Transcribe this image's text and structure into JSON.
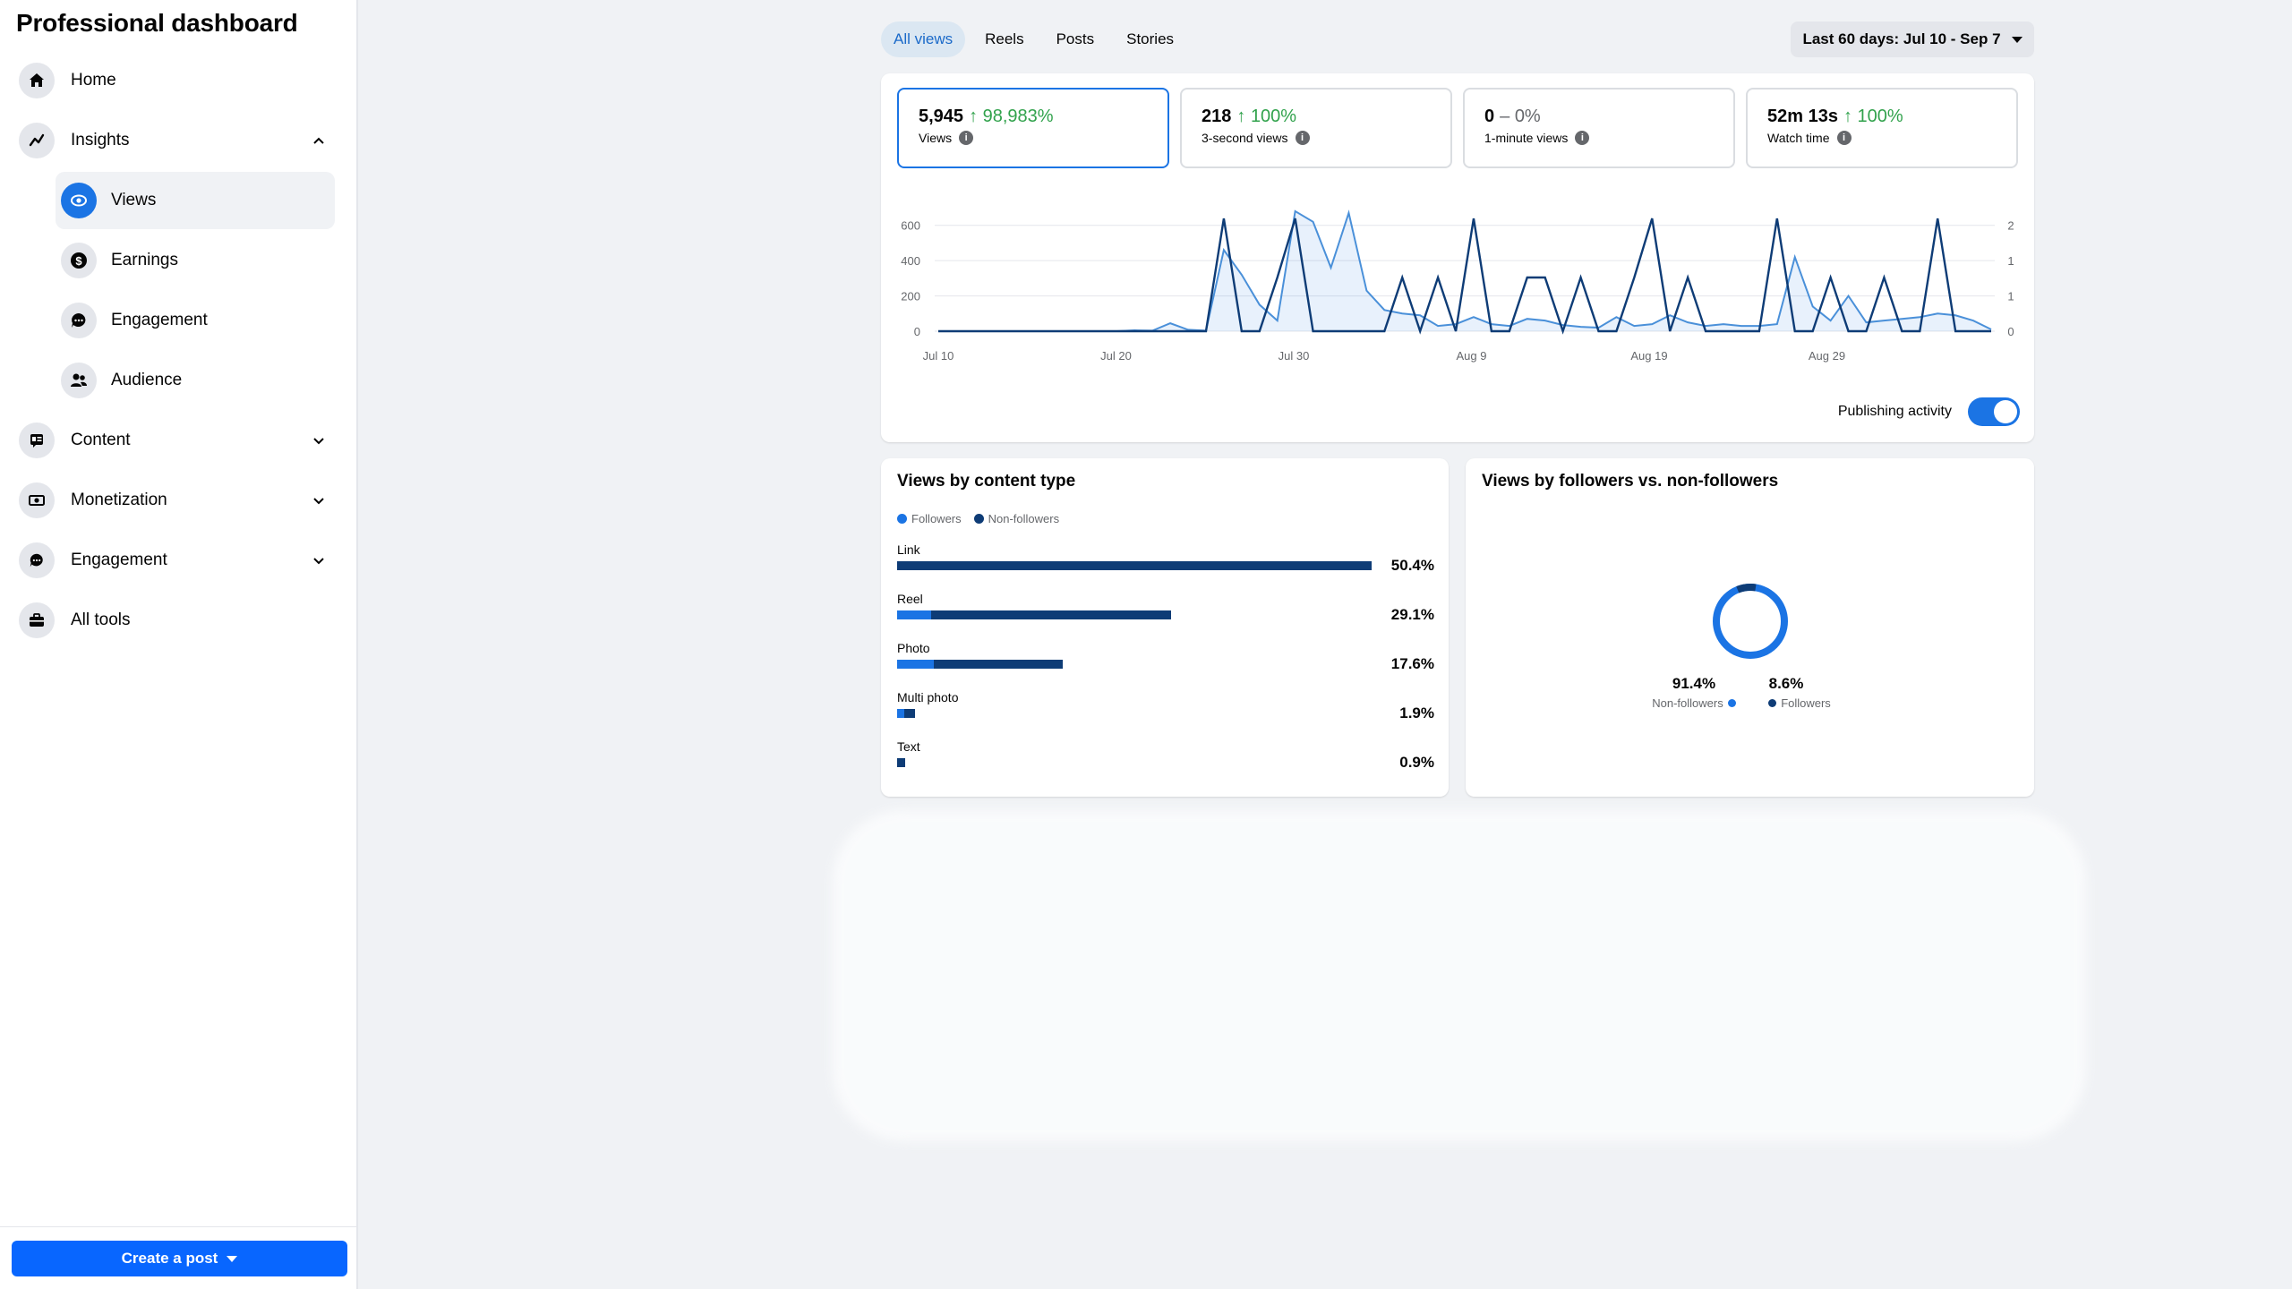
{
  "sidebar": {
    "title": "Professional dashboard",
    "items": [
      {
        "label": "Home",
        "icon": "home-icon"
      },
      {
        "label": "Insights",
        "icon": "insights-icon"
      },
      {
        "label": "Views",
        "icon": "eye-icon"
      },
      {
        "label": "Earnings",
        "icon": "dollar-icon"
      },
      {
        "label": "Engagement",
        "icon": "chat-icon"
      },
      {
        "label": "Audience",
        "icon": "people-icon"
      },
      {
        "label": "Content",
        "icon": "content-icon"
      },
      {
        "label": "Monetization",
        "icon": "money-icon"
      },
      {
        "label": "Engagement",
        "icon": "chat-icon"
      },
      {
        "label": "All tools",
        "icon": "toolbox-icon"
      }
    ],
    "create_post": "Create a post"
  },
  "tabs": [
    "All views",
    "Reels",
    "Posts",
    "Stories"
  ],
  "date_range": "Last 60 days: Jul 10 - Sep 7",
  "metrics": [
    {
      "value": "5,945",
      "arrow": "↑",
      "change": "98,983%",
      "label": "Views"
    },
    {
      "value": "218",
      "arrow": "↑",
      "change": "100%",
      "label": "3-second views"
    },
    {
      "value": "0",
      "arrow": "–",
      "change": "0%",
      "label": "1-minute views"
    },
    {
      "value": "52m 13s",
      "arrow": "↑",
      "change": "100%",
      "label": "Watch time"
    }
  ],
  "publishing_activity": "Publishing activity",
  "colors": {
    "followers": "#1b74e4",
    "non_followers": "#0e3c76",
    "accent": "#1b74e4"
  },
  "content_type": {
    "title": "Views by content type",
    "legend": [
      "Followers",
      "Non-followers"
    ],
    "rows": [
      {
        "label": "Link",
        "pct": "50.4%",
        "total": 50.4,
        "followers": 0
      },
      {
        "label": "Reel",
        "pct": "29.1%",
        "total": 29.1,
        "followers": 3.6
      },
      {
        "label": "Photo",
        "pct": "17.6%",
        "total": 17.6,
        "followers": 3.9
      },
      {
        "label": "Multi photo",
        "pct": "1.9%",
        "total": 1.9,
        "followers": 0.8
      },
      {
        "label": "Text",
        "pct": "0.9%",
        "total": 0.9,
        "followers": 0
      }
    ]
  },
  "followers_split": {
    "title": "Views by followers vs. non-followers",
    "non_followers_pct": "91.4%",
    "non_followers_label": "Non-followers",
    "followers_pct": "8.6%",
    "followers_label": "Followers"
  },
  "chart_data": {
    "type": "line",
    "x_ticks": [
      "Jul 10",
      "Jul 20",
      "Jul 30",
      "Aug 9",
      "Aug 19",
      "Aug 29"
    ],
    "y_ticks_left": [
      "0",
      "200",
      "400",
      "600"
    ],
    "y_ticks_right": [
      "0",
      "1",
      "1",
      "2"
    ],
    "ylim_left": [
      0,
      700
    ],
    "ylim_right": [
      0,
      2.3
    ],
    "x": [
      1,
      2,
      3,
      4,
      5,
      6,
      7,
      8,
      9,
      10,
      11,
      12,
      13,
      14,
      15,
      16,
      17,
      18,
      19,
      20,
      21,
      22,
      23,
      24,
      25,
      26,
      27,
      28,
      29,
      30,
      31,
      32,
      33,
      34,
      35,
      36,
      37,
      38,
      39,
      40,
      41,
      42,
      43,
      44,
      45,
      46,
      47,
      48,
      49,
      50,
      51,
      52,
      53,
      54,
      55,
      56,
      57,
      58,
      59,
      60
    ],
    "series": [
      {
        "values": [
          0,
          0,
          0,
          0,
          0,
          0,
          0,
          0,
          0,
          0,
          0,
          5,
          3,
          45,
          8,
          3,
          460,
          320,
          150,
          60,
          680,
          620,
          360,
          670,
          230,
          120,
          100,
          90,
          30,
          40,
          80,
          40,
          30,
          70,
          60,
          35,
          25,
          20,
          80,
          30,
          40,
          90,
          50,
          30,
          40,
          30,
          30,
          40,
          420,
          140,
          60,
          200,
          50,
          60,
          70,
          80,
          100,
          90,
          60,
          10
        ]
      },
      {
        "values": [
          0,
          0,
          0,
          0,
          0,
          0,
          0,
          0,
          0,
          0,
          0,
          0,
          0,
          0,
          0,
          0,
          2.1,
          0,
          0,
          1,
          2.1,
          0,
          0,
          0,
          0,
          0,
          1,
          0,
          1,
          0,
          2.1,
          0,
          0,
          1,
          1,
          0,
          1,
          0,
          0,
          1,
          2.1,
          0,
          1,
          0,
          0,
          0,
          0,
          2.1,
          0,
          0,
          1,
          0,
          0,
          1,
          0,
          0,
          2.1,
          0,
          0,
          0
        ]
      }
    ]
  }
}
